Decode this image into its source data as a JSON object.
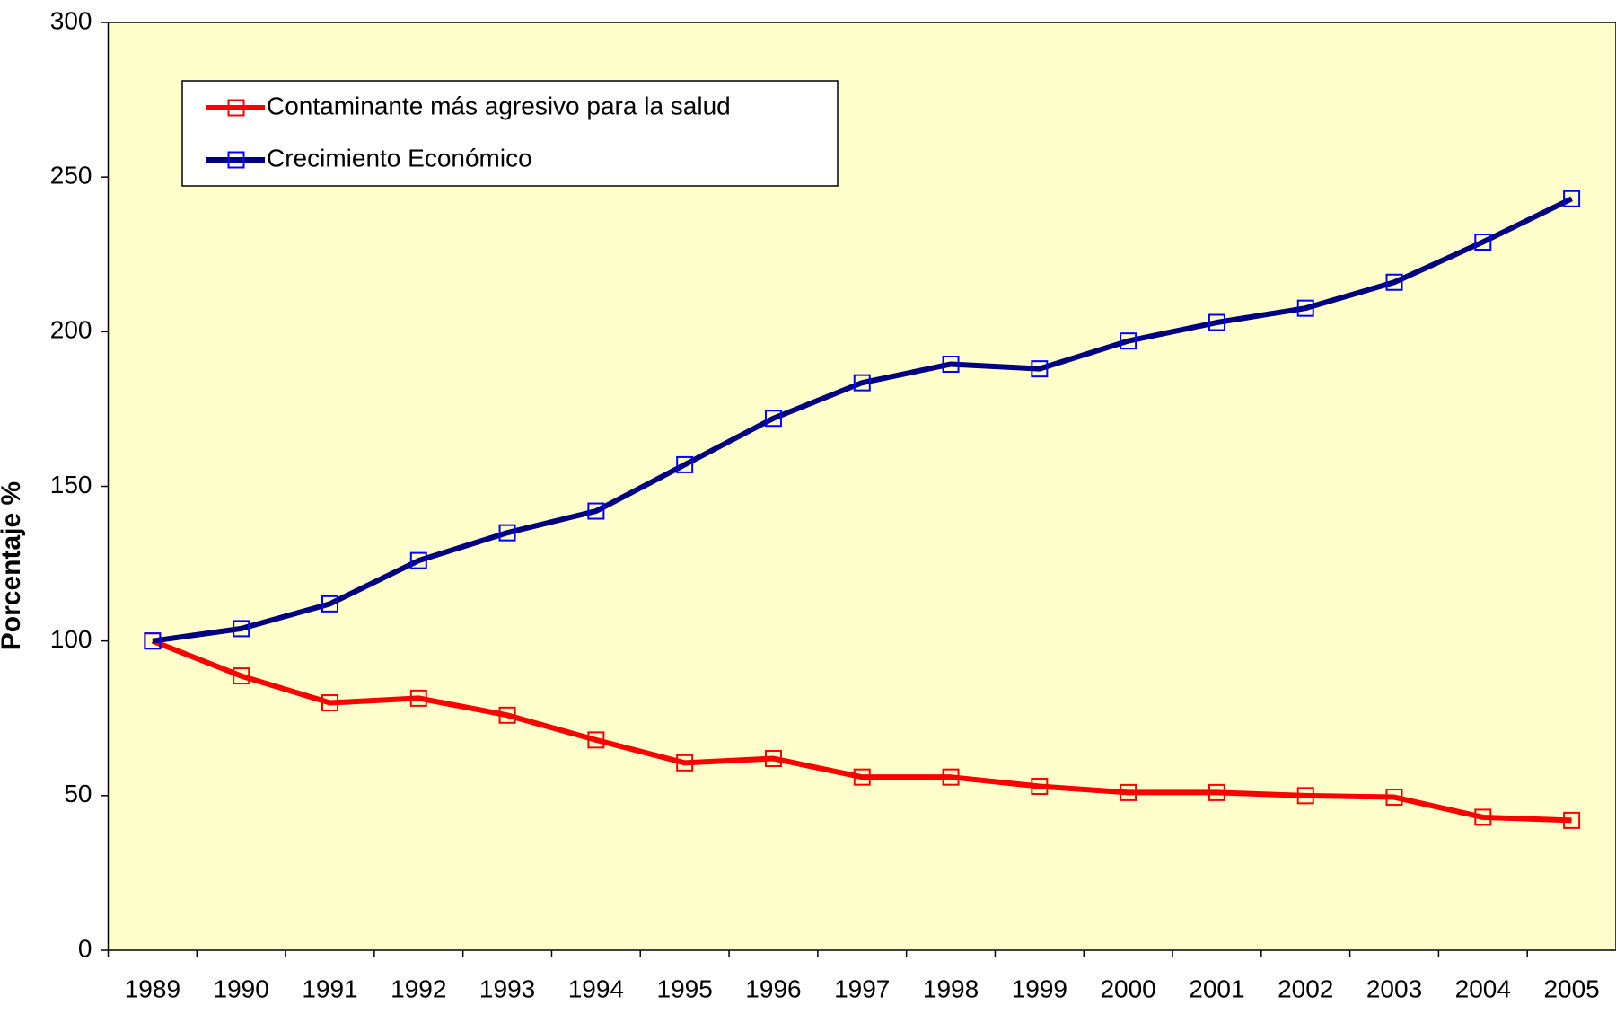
{
  "chart_data": {
    "type": "line",
    "y_label": "Porcentaje %",
    "categories": [
      "1989",
      "1990",
      "1991",
      "1992",
      "1993",
      "1994",
      "1995",
      "1996",
      "1997",
      "1998",
      "1999",
      "2000",
      "2001",
      "2002",
      "2003",
      "2004",
      "2005"
    ],
    "series": [
      {
        "name": "Contaminante más agresivo para la salud",
        "color": "#ff0000",
        "marker_color": "#ff0000",
        "values": [
          100,
          88.7,
          80,
          81.5,
          76,
          68,
          60.6,
          62,
          56,
          56,
          53,
          51,
          51,
          50,
          49.5,
          43,
          42
        ]
      },
      {
        "name": "Crecimiento Económico",
        "color": "#000080",
        "marker_color": "#0000ff",
        "values": [
          100,
          104,
          112,
          126,
          135,
          142,
          157,
          172,
          183.5,
          189.5,
          188,
          197,
          203,
          207.6,
          216,
          229,
          243
        ]
      }
    ],
    "ylim": [
      0,
      300
    ],
    "yticks": [
      0,
      50,
      100,
      150,
      200,
      250,
      300
    ],
    "grid": false,
    "legend": "upper left"
  }
}
